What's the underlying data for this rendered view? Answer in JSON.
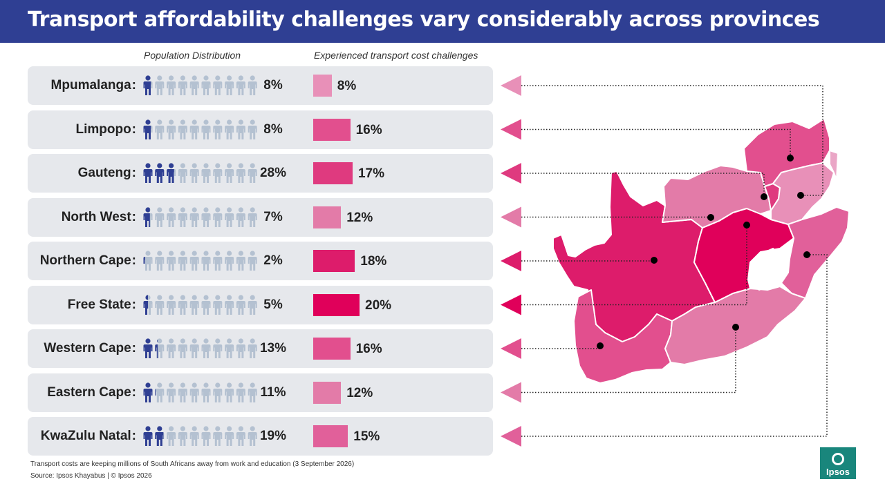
{
  "title": "Transport affordability challenges vary considerably across provinces",
  "chart_data": {
    "type": "bar",
    "headers": {
      "population": "Population Distribution",
      "cost": "Experienced transport cost challenges"
    },
    "bar_max_percent": 20,
    "rows": [
      {
        "name": "Mpumalanga",
        "population_pct": 8,
        "population_label": "8%",
        "cost_pct": 8,
        "cost_label": "8%",
        "color": "#e890b8"
      },
      {
        "name": "Limpopo",
        "population_pct": 8,
        "population_label": "8%",
        "cost_pct": 16,
        "cost_label": "16%",
        "color": "#e24f8e"
      },
      {
        "name": "Gauteng",
        "population_pct": 28,
        "population_label": "28%",
        "cost_pct": 17,
        "cost_label": "17%",
        "color": "#df3a7f"
      },
      {
        "name": "North West",
        "population_pct": 7,
        "population_label": "7%",
        "cost_pct": 12,
        "cost_label": "12%",
        "color": "#e37ba8"
      },
      {
        "name": "Northern Cape",
        "population_pct": 2,
        "population_label": "2%",
        "cost_pct": 18,
        "cost_label": "18%",
        "color": "#dd1c6b"
      },
      {
        "name": "Free State",
        "population_pct": 5,
        "population_label": "5%",
        "cost_pct": 20,
        "cost_label": "20%",
        "color": "#e0005a"
      },
      {
        "name": "Western Cape",
        "population_pct": 13,
        "population_label": "13%",
        "cost_pct": 16,
        "cost_label": "16%",
        "color": "#e24f8e"
      },
      {
        "name": "Eastern Cape",
        "population_pct": 11,
        "population_label": "11%",
        "cost_pct": 12,
        "cost_label": "12%",
        "color": "#e37ba8"
      },
      {
        "name": "KwaZulu Natal",
        "population_pct": 19,
        "population_label": "19%",
        "cost_pct": 15,
        "cost_label": "15%",
        "color": "#e1609a"
      }
    ]
  },
  "colors": {
    "header_bg": "#2f3f93",
    "icon_filled": "#2f3f93",
    "icon_empty": "#b4c1d1",
    "row_bg": "#e6e8ec"
  },
  "footnote": "Transport costs are keeping millions of South Africans away from work and education (3 September 2026)",
  "source": "Source: Ipsos Khayabus  |  © Ipsos 2026",
  "logo": {
    "text": "Ipsos",
    "icon": "ipsos-logo-icon"
  }
}
